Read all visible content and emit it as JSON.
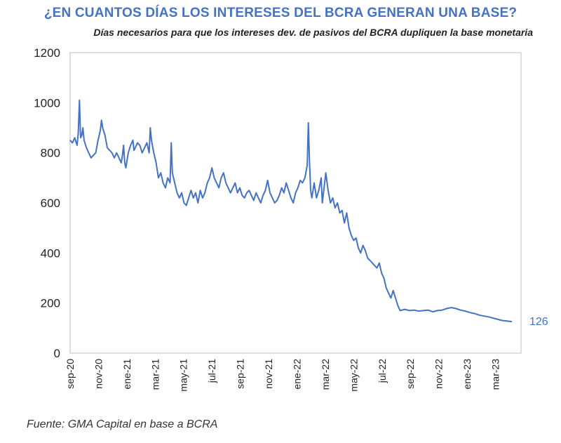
{
  "chart_data": {
    "type": "line",
    "title": "¿EN CUANTOS DÍAS LOS INTERESES DEL BCRA GENERAN UNA BASE?",
    "subtitle": "Días necesarios para que los intereses dev. de pasivos del BCRA dupliquen la base monetaria",
    "source": "Fuente: GMA Capital en base a BCRA",
    "xlabel": "",
    "ylabel": "",
    "ylim": [
      0,
      1200
    ],
    "yticks": [
      0,
      200,
      400,
      600,
      800,
      1000,
      1200
    ],
    "xticks": [
      "sep-20",
      "nov-20",
      "ene-21",
      "mar-21",
      "may-21",
      "jul-21",
      "sep-21",
      "nov-21",
      "ene-22",
      "mar-22",
      "may-22",
      "jul-22",
      "sep-22",
      "nov-22",
      "ene-23",
      "mar-23"
    ],
    "x_range_months": [
      0,
      19.4
    ],
    "end_label": "126",
    "series": [
      {
        "name": "Días",
        "color": "#4472c4",
        "points": [
          [
            0,
            850
          ],
          [
            0.1,
            840
          ],
          [
            0.2,
            860
          ],
          [
            0.3,
            830
          ],
          [
            0.35,
            880
          ],
          [
            0.4,
            1010
          ],
          [
            0.45,
            860
          ],
          [
            0.5,
            870
          ],
          [
            0.55,
            900
          ],
          [
            0.6,
            850
          ],
          [
            0.7,
            820
          ],
          [
            0.8,
            800
          ],
          [
            0.9,
            780
          ],
          [
            1.0,
            790
          ],
          [
            1.1,
            800
          ],
          [
            1.2,
            850
          ],
          [
            1.3,
            890
          ],
          [
            1.35,
            930
          ],
          [
            1.4,
            900
          ],
          [
            1.5,
            870
          ],
          [
            1.6,
            820
          ],
          [
            1.7,
            810
          ],
          [
            1.8,
            800
          ],
          [
            1.9,
            780
          ],
          [
            2.0,
            800
          ],
          [
            2.1,
            780
          ],
          [
            2.2,
            760
          ],
          [
            2.25,
            790
          ],
          [
            2.3,
            830
          ],
          [
            2.35,
            760
          ],
          [
            2.4,
            740
          ],
          [
            2.5,
            800
          ],
          [
            2.6,
            830
          ],
          [
            2.7,
            850
          ],
          [
            2.75,
            810
          ],
          [
            2.8,
            820
          ],
          [
            2.9,
            840
          ],
          [
            3.0,
            830
          ],
          [
            3.1,
            800
          ],
          [
            3.2,
            820
          ],
          [
            3.3,
            840
          ],
          [
            3.4,
            800
          ],
          [
            3.45,
            900
          ],
          [
            3.5,
            850
          ],
          [
            3.6,
            800
          ],
          [
            3.7,
            760
          ],
          [
            3.8,
            700
          ],
          [
            3.9,
            720
          ],
          [
            4.0,
            680
          ],
          [
            4.1,
            660
          ],
          [
            4.2,
            700
          ],
          [
            4.3,
            680
          ],
          [
            4.35,
            840
          ],
          [
            4.4,
            720
          ],
          [
            4.5,
            680
          ],
          [
            4.6,
            640
          ],
          [
            4.7,
            620
          ],
          [
            4.8,
            640
          ],
          [
            4.9,
            600
          ],
          [
            5.0,
            590
          ],
          [
            5.1,
            620
          ],
          [
            5.2,
            650
          ],
          [
            5.3,
            620
          ],
          [
            5.4,
            640
          ],
          [
            5.5,
            600
          ],
          [
            5.6,
            650
          ],
          [
            5.7,
            620
          ],
          [
            5.8,
            640
          ],
          [
            5.9,
            680
          ],
          [
            6.0,
            700
          ],
          [
            6.1,
            740
          ],
          [
            6.2,
            700
          ],
          [
            6.3,
            680
          ],
          [
            6.4,
            660
          ],
          [
            6.5,
            700
          ],
          [
            6.6,
            720
          ],
          [
            6.7,
            680
          ],
          [
            6.8,
            660
          ],
          [
            6.9,
            640
          ],
          [
            7.0,
            660
          ],
          [
            7.1,
            680
          ],
          [
            7.2,
            640
          ],
          [
            7.3,
            660
          ],
          [
            7.4,
            630
          ],
          [
            7.5,
            620
          ],
          [
            7.6,
            640
          ],
          [
            7.7,
            650
          ],
          [
            7.8,
            630
          ],
          [
            7.9,
            610
          ],
          [
            8.0,
            640
          ],
          [
            8.1,
            620
          ],
          [
            8.2,
            600
          ],
          [
            8.3,
            630
          ],
          [
            8.4,
            650
          ],
          [
            8.5,
            690
          ],
          [
            8.6,
            640
          ],
          [
            8.7,
            620
          ],
          [
            8.8,
            600
          ],
          [
            8.9,
            610
          ],
          [
            9.0,
            630
          ],
          [
            9.1,
            660
          ],
          [
            9.2,
            640
          ],
          [
            9.3,
            680
          ],
          [
            9.4,
            650
          ],
          [
            9.5,
            620
          ],
          [
            9.6,
            600
          ],
          [
            9.7,
            640
          ],
          [
            9.8,
            660
          ],
          [
            9.9,
            690
          ],
          [
            10.0,
            680
          ],
          [
            10.1,
            700
          ],
          [
            10.2,
            750
          ],
          [
            10.25,
            920
          ],
          [
            10.3,
            760
          ],
          [
            10.35,
            650
          ],
          [
            10.4,
            620
          ],
          [
            10.5,
            680
          ],
          [
            10.6,
            620
          ],
          [
            10.7,
            650
          ],
          [
            10.8,
            700
          ],
          [
            10.85,
            600
          ],
          [
            10.9,
            640
          ],
          [
            11.0,
            720
          ],
          [
            11.1,
            650
          ],
          [
            11.2,
            600
          ],
          [
            11.3,
            620
          ],
          [
            11.4,
            580
          ],
          [
            11.5,
            600
          ],
          [
            11.6,
            560
          ],
          [
            11.7,
            570
          ],
          [
            11.8,
            520
          ],
          [
            11.9,
            560
          ],
          [
            12.0,
            500
          ],
          [
            12.1,
            470
          ],
          [
            12.2,
            450
          ],
          [
            12.3,
            460
          ],
          [
            12.4,
            420
          ],
          [
            12.5,
            400
          ],
          [
            12.6,
            430
          ],
          [
            12.7,
            410
          ],
          [
            12.8,
            380
          ],
          [
            12.9,
            370
          ],
          [
            13.0,
            360
          ],
          [
            13.1,
            350
          ],
          [
            13.2,
            340
          ],
          [
            13.3,
            360
          ],
          [
            13.4,
            320
          ],
          [
            13.5,
            300
          ],
          [
            13.6,
            260
          ],
          [
            13.7,
            240
          ],
          [
            13.8,
            220
          ],
          [
            13.9,
            250
          ],
          [
            14.0,
            220
          ],
          [
            14.1,
            190
          ],
          [
            14.2,
            170
          ],
          [
            14.4,
            175
          ],
          [
            14.6,
            170
          ],
          [
            14.8,
            172
          ],
          [
            15.0,
            168
          ],
          [
            15.2,
            170
          ],
          [
            15.4,
            172
          ],
          [
            15.6,
            165
          ],
          [
            15.8,
            170
          ],
          [
            16.0,
            172
          ],
          [
            16.2,
            178
          ],
          [
            16.4,
            182
          ],
          [
            16.6,
            178
          ],
          [
            16.8,
            172
          ],
          [
            17.0,
            168
          ],
          [
            17.2,
            162
          ],
          [
            17.4,
            158
          ],
          [
            17.6,
            152
          ],
          [
            17.8,
            148
          ],
          [
            18.0,
            145
          ],
          [
            18.2,
            140
          ],
          [
            18.4,
            135
          ],
          [
            18.6,
            130
          ],
          [
            18.8,
            128
          ],
          [
            19.0,
            126
          ]
        ]
      }
    ]
  }
}
